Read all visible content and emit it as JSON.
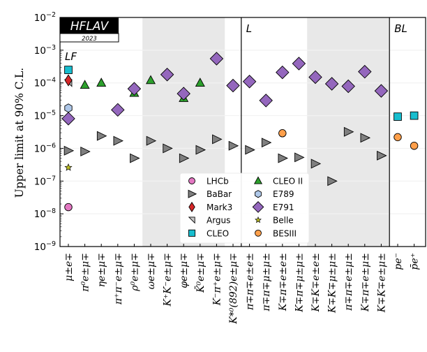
{
  "chart_data": {
    "type": "scatter",
    "title": "",
    "logo": {
      "name": "HFLAV",
      "year": "2023"
    },
    "xlabel": "",
    "ylabel": "Upper limit at 90% C.L.",
    "yscale": "log",
    "ylim": [
      1e-09,
      0.01
    ],
    "yticks": [
      {
        "value": 0.01,
        "label": "10",
        "exp": "−2"
      },
      {
        "value": 0.001,
        "label": "10",
        "exp": "−3"
      },
      {
        "value": 0.0001,
        "label": "10",
        "exp": "−4"
      },
      {
        "value": 1e-05,
        "label": "10",
        "exp": "−5"
      },
      {
        "value": 1e-06,
        "label": "10",
        "exp": "−6"
      },
      {
        "value": 1e-07,
        "label": "10",
        "exp": "−7"
      },
      {
        "value": 1e-08,
        "label": "10",
        "exp": "−8"
      },
      {
        "value": 1e-09,
        "label": "10",
        "exp": "−9"
      }
    ],
    "grid": true,
    "categories": [
      "μ±e∓",
      "π⁰e±μ∓",
      "ηe±μ∓",
      "π⁺π⁻e±μ∓",
      "ρ⁰e±μ∓",
      "ωe±μ∓",
      "K⁺K⁻e±μ∓",
      "φe±μ∓",
      "K̄⁰e±μ∓",
      "K⁻π⁺e±μ∓",
      "K*⁰(892)e±μ∓",
      "π∓π∓e±e±",
      "π∓π∓μ±μ±",
      "K∓π∓e±e±",
      "K∓π∓μ±μ±",
      "K∓K∓e±e±",
      "K∓K∓μ±μ±",
      "π∓π∓e±μ±",
      "K∓π∓e±μ±",
      "K∓K∓e±μ±",
      "pe⁻",
      "p̄e⁺"
    ],
    "regions": [
      {
        "label": "LF",
        "from": 0,
        "to": 10,
        "shaded_ranges": [
          [
            5,
            9
          ]
        ]
      },
      {
        "label": "L",
        "from": 11,
        "to": 19,
        "shaded_ranges": [
          [
            15,
            19
          ]
        ]
      },
      {
        "label": "BL",
        "from": 20,
        "to": 21,
        "shaded_ranges": []
      }
    ],
    "legend_position": "lower-center",
    "series": [
      {
        "name": "LHCb",
        "marker": "circle",
        "color": "#e377c2",
        "points": [
          [
            0,
            1.6e-08
          ]
        ]
      },
      {
        "name": "BaBar",
        "marker": "triangle-right",
        "color": "#7f7f7f",
        "points": [
          [
            0,
            8.5e-07
          ],
          [
            1,
            8e-07
          ],
          [
            2,
            2.4e-06
          ],
          [
            3,
            1.7e-06
          ],
          [
            4,
            5e-07
          ],
          [
            5,
            1.7e-06
          ],
          [
            6,
            1e-06
          ],
          [
            7,
            5e-07
          ],
          [
            8,
            9e-07
          ],
          [
            9,
            1.9e-06
          ],
          [
            10,
            1.2e-06
          ],
          [
            11,
            9e-07
          ],
          [
            12,
            1.5e-06
          ],
          [
            13,
            5e-07
          ],
          [
            14,
            5.3e-07
          ],
          [
            15,
            3.4e-07
          ],
          [
            16,
            1e-07
          ],
          [
            17,
            3.2e-06
          ],
          [
            18,
            2.1e-06
          ],
          [
            19,
            6e-07
          ]
        ]
      },
      {
        "name": "Mark3",
        "marker": "thin-diamond",
        "color": "#d62728",
        "points": [
          [
            0,
            0.00012
          ]
        ]
      },
      {
        "name": "Argus",
        "marker": "triangle-half",
        "color": "#c7c7c7",
        "points": [
          [
            0,
            0.0001
          ]
        ]
      },
      {
        "name": "CLEO",
        "marker": "square",
        "color": "#17becf",
        "points": [
          [
            0,
            0.00025
          ],
          [
            20,
            9.3e-06
          ],
          [
            21,
            1e-05
          ]
        ]
      },
      {
        "name": "CLEO II",
        "marker": "triangle-up",
        "color": "#2ca02c",
        "points": [
          [
            1,
            8.6e-05
          ],
          [
            2,
            0.0001
          ],
          [
            4,
            4.9e-05
          ],
          [
            5,
            0.00012
          ],
          [
            7,
            3.4e-05
          ],
          [
            8,
            0.0001
          ]
        ]
      },
      {
        "name": "E789",
        "marker": "hexagon",
        "color": "#aec7e8",
        "points": [
          [
            0,
            1.7e-05
          ]
        ]
      },
      {
        "name": "E791",
        "marker": "diamond",
        "color": "#9467bd",
        "points": [
          [
            0,
            8.1e-06
          ],
          [
            3,
            1.5e-05
          ],
          [
            4,
            6.6e-05
          ],
          [
            6,
            0.00018
          ],
          [
            7,
            4.7e-05
          ],
          [
            9,
            0.00055
          ],
          [
            10,
            8.3e-05
          ],
          [
            11,
            0.00011
          ],
          [
            12,
            2.9e-05
          ],
          [
            13,
            0.00021
          ],
          [
            14,
            0.00039
          ],
          [
            15,
            0.00015
          ],
          [
            16,
            9.4e-05
          ],
          [
            17,
            7.9e-05
          ],
          [
            18,
            0.00022
          ],
          [
            19,
            5.7e-05
          ]
        ]
      },
      {
        "name": "Belle",
        "marker": "star",
        "color": "#bcbd22",
        "points": [
          [
            0,
            2.6e-07
          ]
        ]
      },
      {
        "name": "BESIII",
        "marker": "circle",
        "color": "#ff9f4a",
        "points": [
          [
            13,
            2.9e-06
          ],
          [
            20,
            2.2e-06
          ],
          [
            21,
            1.2e-06
          ]
        ]
      }
    ]
  }
}
